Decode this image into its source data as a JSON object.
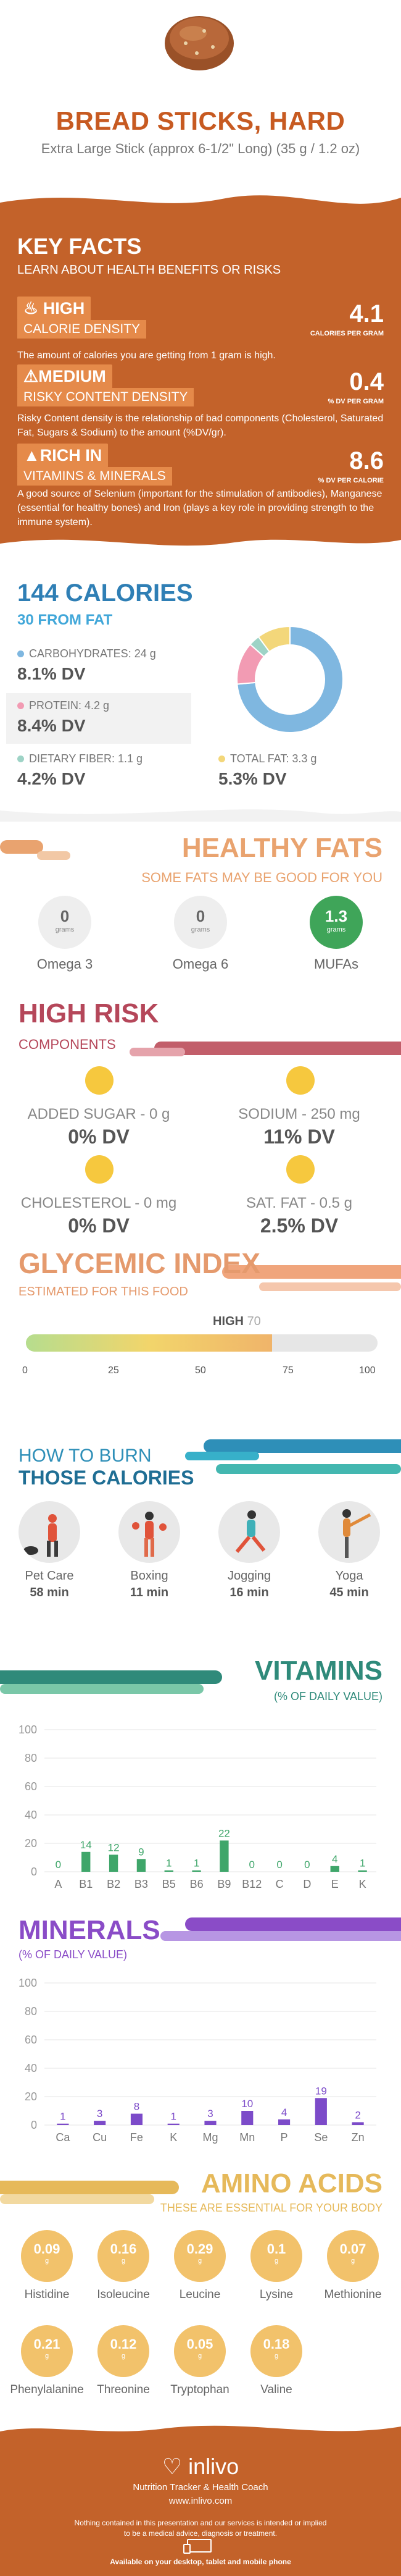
{
  "header": {
    "title": "BREAD STICKS, HARD",
    "subtitle": "Extra Large Stick (approx 6-1/2\" Long) (35 g / 1.2 oz)"
  },
  "key_facts": {
    "title": "KEY FACTS",
    "lead": "LEARN ABOUT HEALTH BENEFITS OR RISKS",
    "items": [
      {
        "level": "HIGH",
        "label": "CALORIE DENSITY",
        "value": "4.1",
        "unit": "CALORIES PER GRAM",
        "desc": "The amount of calories you are getting from 1 gram is high.",
        "icon": "fire-icon"
      },
      {
        "level": "MEDIUM",
        "label": "RISKY CONTENT DENSITY",
        "value": "0.4",
        "unit": "% DV PER GRAM",
        "desc": "Risky Content density is the relationship of bad components (Cholesterol, Saturated Fat, Sugars & Sodium) to the amount (%DV/gr).",
        "icon": "warning-icon"
      },
      {
        "level": "RICH  IN",
        "label": "VITAMINS & MINERALS",
        "value": "8.6",
        "unit": "% DV PER CALORIE",
        "desc": "A good source of Selenium (important for the stimulation of antibodies), Manganese (essential for healthy bones) and Iron (plays a key role in providing strength to the immune system).",
        "icon": "thumbs-up-icon"
      }
    ]
  },
  "calories": {
    "title": "144 CALORIES",
    "from_fat": "30 FROM FAT",
    "nutrients": [
      {
        "name": "CARBOHYDRATES: 24 g",
        "dv": "8.1% DV",
        "color": "#7fb7e0"
      },
      {
        "name": "PROTEIN: 4.2 g",
        "dv": "8.4% DV",
        "color": "#f29bb3"
      },
      {
        "name": "DIETARY FIBER: 1.1 g",
        "dv": "4.2% DV",
        "color": "#9ed3c6"
      },
      {
        "name": "TOTAL FAT: 3.3 g",
        "dv": "5.3% DV",
        "color": "#f3d77a"
      }
    ]
  },
  "chart_data": [
    {
      "type": "pie",
      "title": "",
      "categories": [
        "Carbohydrates",
        "Protein",
        "Dietary Fiber",
        "Total Fat"
      ],
      "values": [
        24,
        4.2,
        1.1,
        3.3
      ],
      "colors": [
        "#7fb7e0",
        "#f29bb3",
        "#9ed3c6",
        "#f3d77a"
      ]
    },
    {
      "type": "bar",
      "title": "VITAMINS",
      "categories": [
        "A",
        "B1",
        "B2",
        "B3",
        "B5",
        "B6",
        "B9",
        "B12",
        "C",
        "D",
        "E",
        "K"
      ],
      "values": [
        0,
        14,
        12,
        9,
        1,
        1,
        22,
        0,
        0,
        0,
        4,
        1
      ],
      "ylim": [
        0,
        100
      ],
      "yticks": [
        0,
        20,
        40,
        60,
        80,
        100
      ],
      "color": "#3fa66a"
    },
    {
      "type": "bar",
      "title": "MINERALS",
      "categories": [
        "Ca",
        "Cu",
        "Fe",
        "K",
        "Mg",
        "Mn",
        "P",
        "Se",
        "Zn"
      ],
      "values": [
        1,
        3,
        8,
        1,
        3,
        10,
        4,
        19,
        2
      ],
      "ylim": [
        0,
        100
      ],
      "yticks": [
        0,
        20,
        40,
        60,
        80,
        100
      ],
      "color": "#7c4bc9"
    }
  ],
  "healthy_fats": {
    "title": "HEALTHY FATS",
    "subtitle": "SOME FATS MAY BE GOOD FOR YOU",
    "items": [
      {
        "value": "0",
        "unit": "grams",
        "name": "Omega 3"
      },
      {
        "value": "0",
        "unit": "grams",
        "name": "Omega 6"
      },
      {
        "value": "1.3",
        "unit": "grams",
        "name": "MUFAs"
      }
    ]
  },
  "high_risk": {
    "title": "HIGH RISK",
    "subtitle": "COMPONENTS",
    "items": [
      {
        "name": "ADDED SUGAR - 0 g",
        "dv": "0% DV"
      },
      {
        "name": "SODIUM - 250 mg",
        "dv": "11% DV"
      },
      {
        "name": "CHOLESTEROL - 0 mg",
        "dv": "0% DV"
      },
      {
        "name": "SAT. FAT - 0.5 g",
        "dv": "2.5% DV"
      }
    ]
  },
  "glycemic": {
    "title": "GLYCEMIC INDEX",
    "subtitle": "ESTIMATED FOR THIS FOOD",
    "level": "HIGH",
    "value": 70,
    "scale": [
      "0",
      "25",
      "50",
      "75",
      "100"
    ]
  },
  "burn": {
    "title1": "HOW TO BURN",
    "title2": "THOSE CALORIES",
    "activities": [
      {
        "name": "Pet Care",
        "minutes": "58 min",
        "icon": "dog-walking-icon"
      },
      {
        "name": "Boxing",
        "minutes": "11 min",
        "icon": "boxing-icon"
      },
      {
        "name": "Jogging",
        "minutes": "16 min",
        "icon": "jogging-icon"
      },
      {
        "name": "Yoga",
        "minutes": "45 min",
        "icon": "yoga-icon"
      }
    ]
  },
  "vitamins": {
    "title": "VITAMINS",
    "subtitle": "(% OF DAILY VALUE)"
  },
  "minerals": {
    "title": "MINERALS",
    "subtitle": "(% OF DAILY VALUE)"
  },
  "amino": {
    "title": "AMINO ACIDS",
    "subtitle": "THESE ARE ESSENTIAL FOR YOUR BODY",
    "items": [
      {
        "value": "0.09",
        "unit": "g",
        "name": "Histidine"
      },
      {
        "value": "0.16",
        "unit": "g",
        "name": "Isoleucine"
      },
      {
        "value": "0.29",
        "unit": "g",
        "name": "Leucine"
      },
      {
        "value": "0.1",
        "unit": "g",
        "name": "Lysine"
      },
      {
        "value": "0.07",
        "unit": "g",
        "name": "Methionine"
      },
      {
        "value": "0.21",
        "unit": "g",
        "name": "Phenylalanine"
      },
      {
        "value": "0.12",
        "unit": "g",
        "name": "Threonine"
      },
      {
        "value": "0.05",
        "unit": "g",
        "name": "Tryptophan"
      },
      {
        "value": "0.18",
        "unit": "g",
        "name": "Valine"
      }
    ]
  },
  "footer": {
    "brand": "inlivo",
    "tagline": "Nutrition Tracker & Health Coach",
    "url": "www.inlivo.com",
    "disclaimer1": "Nothing contained in this presentation and our services is intended or implied",
    "disclaimer2": "to be a medical advice, diagnosis or treatment.",
    "available": "Available on your desktop, tablet and mobile phone"
  }
}
